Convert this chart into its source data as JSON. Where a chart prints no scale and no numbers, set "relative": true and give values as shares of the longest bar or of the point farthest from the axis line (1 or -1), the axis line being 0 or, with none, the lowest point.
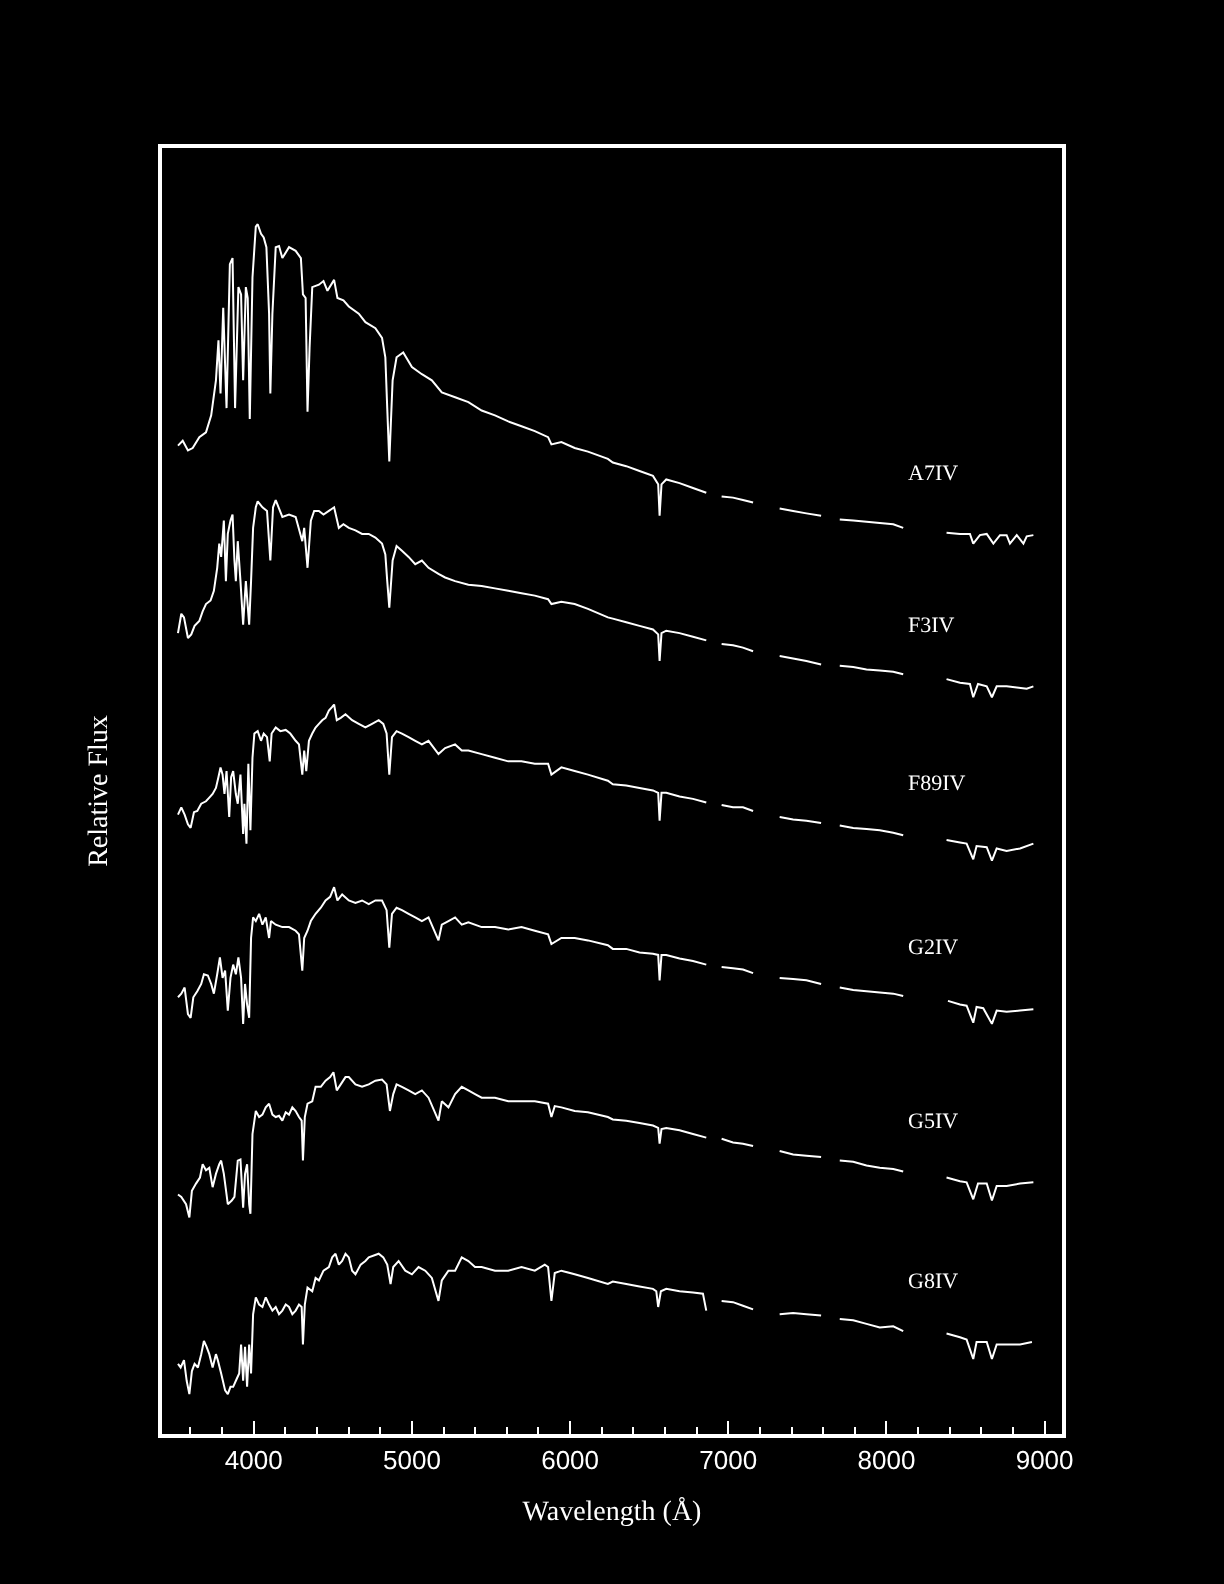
{
  "chart_data": {
    "type": "line",
    "relative": true,
    "xlabel": "Wavelength (Å)",
    "ylabel": "Relative Flux",
    "line_style": "solid",
    "xlim": [
      3420,
      9110
    ],
    "xticks": [
      {
        "value": 3600,
        "label": null
      },
      {
        "value": 3800,
        "label": null
      },
      4000,
      {
        "value": 4200,
        "label": null
      },
      {
        "value": 4400,
        "label": null
      },
      {
        "value": 4600,
        "label": null
      },
      {
        "value": 4800,
        "label": null
      },
      5000,
      {
        "value": 5200,
        "label": null
      },
      {
        "value": 5400,
        "label": null
      },
      {
        "value": 5600,
        "label": null
      },
      {
        "value": 5800,
        "label": null
      },
      6000,
      {
        "value": 6200,
        "label": null
      },
      {
        "value": 6400,
        "label": null
      },
      {
        "value": 6600,
        "label": null
      },
      {
        "value": 6800,
        "label": null
      },
      7000,
      {
        "value": 7200,
        "label": null
      },
      {
        "value": 7400,
        "label": null
      },
      {
        "value": 7600,
        "label": null
      },
      {
        "value": 7800,
        "label": null
      },
      8000,
      {
        "value": 8200,
        "label": null
      },
      {
        "value": 8400,
        "label": null
      },
      {
        "value": 8600,
        "label": null
      },
      {
        "value": 8800,
        "label": null
      },
      9000
    ],
    "series": [
      {
        "name": "A7IV",
        "color": "#ffffff",
        "x": [
          3521,
          3551,
          3584,
          3614,
          3656,
          3698,
          3731,
          3761,
          3777,
          3790,
          3807,
          3828,
          3849,
          3866,
          3882,
          3903,
          3920,
          3933,
          3950,
          3962,
          3975,
          3992,
          4013,
          4025,
          4046,
          4063,
          4080,
          4097,
          4105,
          4118,
          4139,
          4160,
          4181,
          4223,
          4265,
          4298,
          4311,
          4328,
          4340,
          4353,
          4370,
          4412,
          4441,
          4466,
          4508,
          4529,
          4567,
          4601,
          4664,
          4706,
          4769,
          4811,
          4832,
          4844,
          4857,
          4878,
          4903,
          4945,
          5000,
          5063,
          5126,
          5189,
          5273,
          5357,
          5441,
          5525,
          5609,
          5693,
          5777,
          5861,
          5882,
          5945,
          6029,
          6113,
          6239,
          6270,
          6355,
          6439,
          6524,
          6557,
          6566,
          6578,
          6608,
          6692,
          6777,
          6861,
          6910,
          6958,
          7030,
          7093,
          7157,
          7240,
          7325,
          7410,
          7494,
          7587,
          7650,
          7705,
          7790,
          7874,
          7958,
          8043,
          8106,
          8250,
          8380,
          8465,
          8528,
          8549,
          8591,
          8634,
          8676,
          8718,
          8760,
          8781,
          8824,
          8866,
          8887,
          8929
        ],
        "values": [
          0.817,
          0.821,
          0.813,
          0.815,
          0.824,
          0.828,
          0.842,
          0.871,
          0.904,
          0.86,
          0.931,
          0.848,
          0.967,
          0.972,
          0.848,
          0.948,
          0.942,
          0.871,
          0.948,
          0.939,
          0.839,
          0.956,
          0.998,
          1,
          0.992,
          0.989,
          0.981,
          0.926,
          0.86,
          0.926,
          0.981,
          0.982,
          0.972,
          0.981,
          0.978,
          0.972,
          0.942,
          0.939,
          0.845,
          0.898,
          0.948,
          0.95,
          0.953,
          0.945,
          0.954,
          0.939,
          0.937,
          0.932,
          0.926,
          0.919,
          0.914,
          0.906,
          0.89,
          0.848,
          0.804,
          0.871,
          0.89,
          0.894,
          0.882,
          0.876,
          0.871,
          0.861,
          0.857,
          0.853,
          0.846,
          0.842,
          0.837,
          0.833,
          0.829,
          0.824,
          0.818,
          0.82,
          0.815,
          0.812,
          0.806,
          0.803,
          0.8,
          0.796,
          0.792,
          0.785,
          0.759,
          0.785,
          0.789,
          0.786,
          0.782,
          0.778,
          null,
          0.775,
          0.774,
          0.772,
          0.77,
          null,
          0.765,
          0.763,
          0.761,
          0.759,
          null,
          0.756,
          0.755,
          0.754,
          0.753,
          0.752,
          0.749,
          null,
          0.745,
          0.744,
          0.744,
          0.736,
          0.743,
          0.744,
          0.736,
          0.743,
          0.743,
          0.736,
          0.743,
          0.736,
          0.742,
          0.743
        ]
      },
      {
        "name": "F3IV",
        "color": "#ffffff",
        "x": [
          3521,
          3542,
          3559,
          3584,
          3605,
          3626,
          3656,
          3677,
          3698,
          3727,
          3748,
          3769,
          3782,
          3794,
          3811,
          3824,
          3836,
          3853,
          3866,
          3878,
          3887,
          3899,
          3916,
          3933,
          3950,
          3971,
          3983,
          3996,
          4013,
          4025,
          4055,
          4084,
          4105,
          4122,
          4139,
          4181,
          4223,
          4265,
          4307,
          4319,
          4340,
          4361,
          4382,
          4412,
          4441,
          4475,
          4508,
          4538,
          4567,
          4601,
          4643,
          4685,
          4727,
          4769,
          4811,
          4832,
          4844,
          4857,
          4878,
          4903,
          4937,
          4979,
          5021,
          5063,
          5105,
          5168,
          5210,
          5273,
          5357,
          5441,
          5525,
          5609,
          5693,
          5777,
          5861,
          5882,
          5945,
          6029,
          6113,
          6239,
          6270,
          6355,
          6439,
          6524,
          6557,
          6566,
          6578,
          6608,
          6692,
          6777,
          6861,
          6910,
          6958,
          7030,
          7093,
          7157,
          7240,
          7325,
          7410,
          7494,
          7587,
          7650,
          7705,
          7790,
          7874,
          7958,
          8043,
          8106,
          8250,
          8380,
          8465,
          8528,
          8549,
          8579,
          8634,
          8667,
          8697,
          8760,
          8824,
          8887,
          8929
        ],
        "values": [
          0.662,
          0.678,
          0.675,
          0.658,
          0.661,
          0.668,
          0.672,
          0.68,
          0.686,
          0.689,
          0.697,
          0.716,
          0.736,
          0.725,
          0.755,
          0.705,
          0.744,
          0.755,
          0.76,
          0.722,
          0.705,
          0.738,
          0.705,
          0.669,
          0.705,
          0.669,
          0.705,
          0.749,
          0.766,
          0.771,
          0.766,
          0.763,
          0.722,
          0.766,
          0.772,
          0.758,
          0.76,
          0.758,
          0.738,
          0.749,
          0.716,
          0.755,
          0.763,
          0.763,
          0.76,
          0.763,
          0.766,
          0.749,
          0.752,
          0.749,
          0.747,
          0.744,
          0.744,
          0.741,
          0.736,
          0.727,
          0.705,
          0.683,
          0.722,
          0.734,
          0.73,
          0.725,
          0.719,
          0.722,
          0.716,
          0.711,
          0.708,
          0.705,
          0.702,
          0.701,
          0.699,
          0.697,
          0.695,
          0.693,
          0.69,
          0.686,
          0.688,
          0.686,
          0.682,
          0.675,
          0.674,
          0.671,
          0.668,
          0.665,
          0.661,
          0.639,
          0.662,
          0.664,
          0.662,
          0.659,
          0.656,
          null,
          0.653,
          0.652,
          0.65,
          0.647,
          null,
          0.643,
          0.641,
          0.639,
          0.636,
          null,
          0.635,
          0.634,
          0.632,
          0.631,
          0.63,
          0.628,
          null,
          0.624,
          0.621,
          0.62,
          0.609,
          0.62,
          0.618,
          0.609,
          0.618,
          0.618,
          0.617,
          0.616,
          0.618
        ]
      },
      {
        "name": "F89IV",
        "color": "#ffffff",
        "x": [
          3521,
          3542,
          3563,
          3584,
          3601,
          3622,
          3643,
          3668,
          3698,
          3719,
          3740,
          3761,
          3777,
          3790,
          3803,
          3815,
          3828,
          3845,
          3857,
          3870,
          3887,
          3899,
          3916,
          3933,
          3941,
          3954,
          3966,
          3979,
          3992,
          4004,
          4025,
          4046,
          4063,
          4084,
          4101,
          4113,
          4139,
          4168,
          4202,
          4231,
          4265,
          4286,
          4307,
          4319,
          4332,
          4349,
          4370,
          4391,
          4412,
          4433,
          4454,
          4475,
          4496,
          4508,
          4525,
          4550,
          4580,
          4622,
          4664,
          4706,
          4748,
          4790,
          4819,
          4840,
          4857,
          4874,
          4903,
          4937,
          4979,
          5021,
          5063,
          5105,
          5168,
          5210,
          5273,
          5315,
          5357,
          5441,
          5525,
          5609,
          5693,
          5777,
          5861,
          5882,
          5945,
          6029,
          6113,
          6239,
          6270,
          6355,
          6439,
          6524,
          6557,
          6566,
          6578,
          6608,
          6692,
          6777,
          6861,
          6910,
          6958,
          7030,
          7093,
          7157,
          7240,
          7325,
          7410,
          7494,
          7587,
          7650,
          7705,
          7790,
          7874,
          7958,
          8043,
          8106,
          8250,
          8380,
          8465,
          8507,
          8549,
          8570,
          8634,
          8667,
          8697,
          8760,
          8845,
          8929
        ],
        "values": [
          0.512,
          0.518,
          0.512,
          0.504,
          0.501,
          0.514,
          0.515,
          0.521,
          0.523,
          0.526,
          0.529,
          0.534,
          0.543,
          0.551,
          0.545,
          0.529,
          0.548,
          0.51,
          0.543,
          0.548,
          0.529,
          0.521,
          0.545,
          0.496,
          0.521,
          0.488,
          0.554,
          0.499,
          0.559,
          0.579,
          0.581,
          0.573,
          0.579,
          0.576,
          0.556,
          0.579,
          0.584,
          0.581,
          0.582,
          0.579,
          0.573,
          0.57,
          0.545,
          0.565,
          0.548,
          0.573,
          0.579,
          0.584,
          0.587,
          0.59,
          0.592,
          0.598,
          0.601,
          0.603,
          0.59,
          0.592,
          0.595,
          0.59,
          0.587,
          0.584,
          0.587,
          0.59,
          0.587,
          0.579,
          0.545,
          0.576,
          0.581,
          0.579,
          0.576,
          0.573,
          0.57,
          0.573,
          0.562,
          0.567,
          0.57,
          0.565,
          0.565,
          0.562,
          0.559,
          0.556,
          0.556,
          0.554,
          0.554,
          0.545,
          0.551,
          0.548,
          0.545,
          0.54,
          0.537,
          0.536,
          0.534,
          0.532,
          0.53,
          0.507,
          0.53,
          0.53,
          0.527,
          0.525,
          0.522,
          null,
          0.52,
          0.518,
          0.518,
          0.515,
          null,
          0.51,
          0.508,
          0.507,
          0.505,
          null,
          0.503,
          0.501,
          0.5,
          0.499,
          0.497,
          0.495,
          null,
          0.491,
          0.489,
          0.488,
          0.475,
          0.486,
          0.485,
          0.474,
          0.484,
          0.482,
          0.484,
          0.488
        ]
      },
      {
        "name": "G2IV",
        "color": "#ffffff",
        "x": [
          3521,
          3542,
          3563,
          3584,
          3601,
          3618,
          3643,
          3668,
          3685,
          3710,
          3731,
          3748,
          3769,
          3786,
          3803,
          3819,
          3836,
          3853,
          3870,
          3887,
          3903,
          3920,
          3933,
          3945,
          3958,
          3971,
          3983,
          3996,
          4013,
          4034,
          4055,
          4076,
          4097,
          4109,
          4139,
          4181,
          4223,
          4265,
          4286,
          4307,
          4319,
          4340,
          4361,
          4391,
          4424,
          4454,
          4483,
          4508,
          4529,
          4559,
          4601,
          4643,
          4685,
          4727,
          4769,
          4811,
          4840,
          4857,
          4874,
          4903,
          4937,
          4979,
          5021,
          5063,
          5105,
          5168,
          5189,
          5231,
          5273,
          5315,
          5357,
          5441,
          5525,
          5609,
          5693,
          5777,
          5861,
          5882,
          5945,
          6029,
          6113,
          6239,
          6270,
          6355,
          6439,
          6524,
          6557,
          6566,
          6578,
          6608,
          6692,
          6777,
          6861,
          6910,
          6958,
          7030,
          7093,
          7157,
          7240,
          7325,
          7410,
          7494,
          7587,
          7650,
          7705,
          7790,
          7874,
          7958,
          8043,
          8106,
          8250,
          8389,
          8465,
          8507,
          8549,
          8570,
          8612,
          8667,
          8697,
          8760,
          8845,
          8929
        ],
        "values": [
          0.361,
          0.364,
          0.369,
          0.347,
          0.344,
          0.361,
          0.366,
          0.372,
          0.38,
          0.379,
          0.372,
          0.364,
          0.38,
          0.394,
          0.377,
          0.383,
          0.35,
          0.377,
          0.388,
          0.38,
          0.394,
          0.377,
          0.339,
          0.372,
          0.355,
          0.344,
          0.41,
          0.427,
          0.424,
          0.43,
          0.421,
          0.427,
          0.41,
          0.424,
          0.421,
          0.419,
          0.419,
          0.416,
          0.413,
          0.383,
          0.41,
          0.416,
          0.424,
          0.43,
          0.435,
          0.441,
          0.444,
          0.452,
          0.441,
          0.446,
          0.441,
          0.439,
          0.441,
          0.438,
          0.441,
          0.441,
          0.433,
          0.402,
          0.43,
          0.435,
          0.433,
          0.43,
          0.427,
          0.424,
          0.427,
          0.408,
          0.421,
          0.424,
          0.427,
          0.421,
          0.423,
          0.419,
          0.419,
          0.417,
          0.419,
          0.416,
          0.413,
          0.405,
          0.41,
          0.41,
          0.408,
          0.404,
          0.401,
          0.401,
          0.398,
          0.397,
          0.396,
          0.375,
          0.396,
          0.396,
          0.393,
          0.391,
          0.388,
          null,
          0.386,
          0.385,
          0.384,
          0.381,
          null,
          0.377,
          0.376,
          0.375,
          0.372,
          null,
          0.369,
          0.367,
          0.366,
          0.365,
          0.364,
          0.362,
          null,
          0.358,
          0.355,
          0.354,
          0.34,
          0.353,
          0.352,
          0.339,
          0.35,
          0.349,
          0.35,
          0.351
        ]
      },
      {
        "name": "G5IV",
        "color": "#ffffff",
        "x": [
          3521,
          3542,
          3572,
          3593,
          3609,
          3635,
          3660,
          3677,
          3698,
          3719,
          3740,
          3761,
          3782,
          3794,
          3811,
          3836,
          3861,
          3878,
          3899,
          3916,
          3933,
          3945,
          3958,
          3971,
          3979,
          3992,
          4013,
          4034,
          4055,
          4076,
          4097,
          4118,
          4139,
          4160,
          4181,
          4202,
          4223,
          4244,
          4265,
          4286,
          4303,
          4311,
          4323,
          4340,
          4370,
          4391,
          4424,
          4454,
          4483,
          4504,
          4525,
          4550,
          4580,
          4601,
          4643,
          4685,
          4727,
          4769,
          4811,
          4840,
          4861,
          4882,
          4903,
          4937,
          4979,
          5021,
          5063,
          5105,
          5168,
          5189,
          5231,
          5273,
          5315,
          5357,
          5399,
          5441,
          5525,
          5609,
          5693,
          5777,
          5861,
          5882,
          5903,
          5945,
          6029,
          6113,
          6239,
          6270,
          6355,
          6439,
          6524,
          6557,
          6566,
          6578,
          6608,
          6692,
          6777,
          6861,
          6910,
          6958,
          7030,
          7093,
          7157,
          7240,
          7325,
          7410,
          7494,
          7587,
          7650,
          7705,
          7790,
          7874,
          7958,
          8043,
          8106,
          8250,
          8380,
          8465,
          8507,
          8549,
          8579,
          8634,
          8667,
          8697,
          8760,
          8845,
          8929
        ],
        "values": [
          0.198,
          0.196,
          0.19,
          0.179,
          0.201,
          0.207,
          0.212,
          0.223,
          0.218,
          0.22,
          0.204,
          0.215,
          0.223,
          0.226,
          0.215,
          0.19,
          0.193,
          0.196,
          0.226,
          0.227,
          0.187,
          0.215,
          0.223,
          0.19,
          0.182,
          0.248,
          0.267,
          0.262,
          0.264,
          0.27,
          0.273,
          0.264,
          0.262,
          0.263,
          0.259,
          0.266,
          0.264,
          0.27,
          0.267,
          0.262,
          0.259,
          0.226,
          0.262,
          0.273,
          0.275,
          0.287,
          0.287,
          0.292,
          0.295,
          0.299,
          0.284,
          0.289,
          0.295,
          0.295,
          0.289,
          0.287,
          0.289,
          0.292,
          0.293,
          0.289,
          0.267,
          0.281,
          0.289,
          0.287,
          0.284,
          0.281,
          0.284,
          0.278,
          0.259,
          0.275,
          0.27,
          0.281,
          0.287,
          0.284,
          0.281,
          0.278,
          0.278,
          0.275,
          0.275,
          0.275,
          0.273,
          0.262,
          0.271,
          0.27,
          0.267,
          0.266,
          0.262,
          0.26,
          0.259,
          0.257,
          0.255,
          0.253,
          0.24,
          0.252,
          0.253,
          0.251,
          0.248,
          0.245,
          null,
          0.244,
          0.241,
          0.24,
          0.238,
          null,
          0.234,
          0.231,
          0.23,
          0.229,
          null,
          0.226,
          0.225,
          0.222,
          0.22,
          0.219,
          0.217,
          null,
          0.212,
          0.209,
          0.208,
          0.194,
          0.207,
          0.207,
          0.193,
          0.205,
          0.205,
          0.207,
          0.208
        ]
      },
      {
        "name": "G8IV",
        "color": "#ffffff",
        "x": [
          3521,
          3538,
          3559,
          3576,
          3593,
          3609,
          3626,
          3647,
          3668,
          3685,
          3702,
          3719,
          3740,
          3761,
          3773,
          3794,
          3819,
          3836,
          3853,
          3870,
          3887,
          3908,
          3920,
          3933,
          3945,
          3958,
          3971,
          3983,
          3996,
          4013,
          4034,
          4055,
          4076,
          4097,
          4118,
          4139,
          4160,
          4181,
          4202,
          4223,
          4244,
          4265,
          4286,
          4303,
          4311,
          4323,
          4340,
          4370,
          4391,
          4412,
          4441,
          4475,
          4496,
          4517,
          4538,
          4559,
          4580,
          4601,
          4622,
          4643,
          4676,
          4706,
          4727,
          4790,
          4819,
          4844,
          4865,
          4882,
          4916,
          4958,
          5000,
          5042,
          5084,
          5126,
          5168,
          5189,
          5231,
          5273,
          5315,
          5357,
          5399,
          5441,
          5525,
          5609,
          5693,
          5777,
          5840,
          5861,
          5882,
          5903,
          5945,
          6029,
          6113,
          6239,
          6270,
          6355,
          6439,
          6524,
          6545,
          6557,
          6574,
          6608,
          6692,
          6777,
          6840,
          6861,
          6910,
          6958,
          7030,
          7093,
          7157,
          7240,
          7325,
          7410,
          7494,
          7587,
          7650,
          7705,
          7790,
          7874,
          7958,
          8043,
          8106,
          8250,
          8380,
          8465,
          8507,
          8549,
          8570,
          8634,
          8667,
          8697,
          8760,
          8845,
          8920
        ],
        "values": [
          0.058,
          0.055,
          0.061,
          0.044,
          0.033,
          0.052,
          0.058,
          0.055,
          0.066,
          0.077,
          0.072,
          0.066,
          0.055,
          0.066,
          0.061,
          0.05,
          0.036,
          0.033,
          0.039,
          0.039,
          0.044,
          0.05,
          0.074,
          0.044,
          0.072,
          0.039,
          0.074,
          0.05,
          0.099,
          0.113,
          0.107,
          0.105,
          0.113,
          0.107,
          0.102,
          0.105,
          0.099,
          0.102,
          0.107,
          0.105,
          0.099,
          0.102,
          0.107,
          0.105,
          0.074,
          0.107,
          0.121,
          0.118,
          0.129,
          0.127,
          0.135,
          0.138,
          0.146,
          0.149,
          0.14,
          0.143,
          0.149,
          0.146,
          0.135,
          0.132,
          0.14,
          0.143,
          0.146,
          0.149,
          0.146,
          0.14,
          0.124,
          0.138,
          0.143,
          0.135,
          0.132,
          0.138,
          0.135,
          0.129,
          0.11,
          0.127,
          0.135,
          0.135,
          0.146,
          0.143,
          0.138,
          0.138,
          0.135,
          0.135,
          0.138,
          0.135,
          0.14,
          0.138,
          0.11,
          0.133,
          0.135,
          0.132,
          0.129,
          0.124,
          0.126,
          0.124,
          0.122,
          0.12,
          0.118,
          0.105,
          0.118,
          0.12,
          0.118,
          0.117,
          0.116,
          0.102,
          null,
          0.11,
          0.109,
          0.106,
          0.103,
          null,
          0.099,
          0.1,
          0.099,
          0.098,
          null,
          0.095,
          0.094,
          0.091,
          0.088,
          0.089,
          0.085,
          null,
          0.083,
          0.08,
          0.078,
          0.062,
          0.076,
          0.076,
          0.062,
          0.074,
          0.074,
          0.074,
          0.076
        ]
      }
    ]
  }
}
